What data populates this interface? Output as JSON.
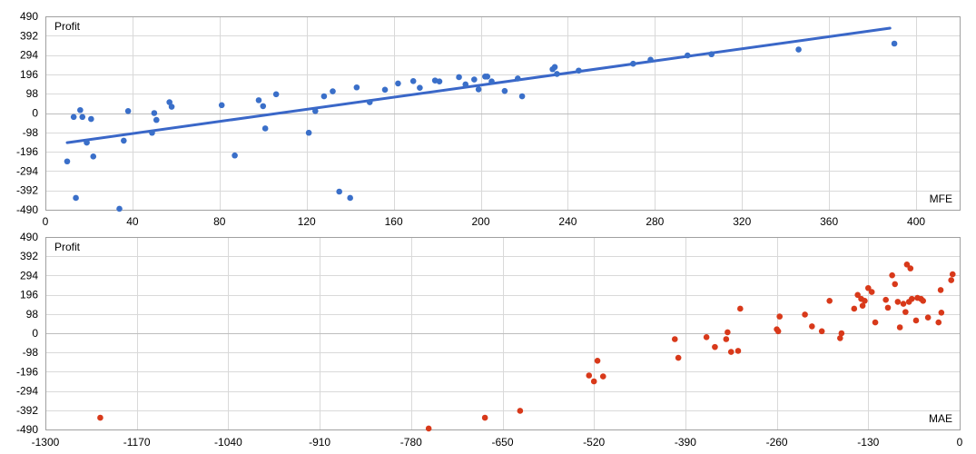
{
  "chart_data": [
    {
      "type": "scatter",
      "title": "",
      "ylabel": "Profit",
      "xlabel": "MFE",
      "xlim": [
        0,
        420
      ],
      "ylim": [
        -490,
        490
      ],
      "x_ticks": [
        0,
        40,
        80,
        120,
        160,
        200,
        240,
        280,
        320,
        360,
        400
      ],
      "y_ticks": [
        -490,
        -392,
        -294,
        -196,
        -98,
        0,
        98,
        196,
        294,
        392,
        490
      ],
      "grid": true,
      "point_color": "#3a6fc9",
      "trend_color": "#3a67c8",
      "trendline": {
        "x": [
          10,
          388
        ],
        "y": [
          -150,
          430
        ]
      },
      "points": [
        [
          10,
          -245
        ],
        [
          13,
          -20
        ],
        [
          14,
          -430
        ],
        [
          16,
          15
        ],
        [
          17,
          -20
        ],
        [
          19,
          -150
        ],
        [
          21,
          -30
        ],
        [
          22,
          -220
        ],
        [
          34,
          -485
        ],
        [
          36,
          -140
        ],
        [
          38,
          10
        ],
        [
          49,
          -100
        ],
        [
          50,
          0
        ],
        [
          51,
          -35
        ],
        [
          57,
          55
        ],
        [
          58,
          32
        ],
        [
          81,
          40
        ],
        [
          87,
          -215
        ],
        [
          98,
          65
        ],
        [
          100,
          35
        ],
        [
          101,
          -78
        ],
        [
          106,
          95
        ],
        [
          121,
          -100
        ],
        [
          124,
          10
        ],
        [
          128,
          85
        ],
        [
          132,
          110
        ],
        [
          135,
          -398
        ],
        [
          140,
          -430
        ],
        [
          143,
          130
        ],
        [
          149,
          55
        ],
        [
          156,
          118
        ],
        [
          162,
          150
        ],
        [
          169,
          162
        ],
        [
          172,
          128
        ],
        [
          179,
          165
        ],
        [
          181,
          160
        ],
        [
          190,
          182
        ],
        [
          193,
          145
        ],
        [
          197,
          170
        ],
        [
          199,
          120
        ],
        [
          202,
          185
        ],
        [
          203,
          185
        ],
        [
          205,
          160
        ],
        [
          211,
          112
        ],
        [
          217,
          175
        ],
        [
          219,
          85
        ],
        [
          233,
          222
        ],
        [
          234,
          233
        ],
        [
          235,
          198
        ],
        [
          245,
          215
        ],
        [
          270,
          250
        ],
        [
          278,
          270
        ],
        [
          295,
          292
        ],
        [
          306,
          298
        ],
        [
          346,
          322
        ],
        [
          390,
          352
        ]
      ]
    },
    {
      "type": "scatter",
      "title": "",
      "ylabel": "Profit",
      "xlabel": "MAE",
      "xlim": [
        -1300,
        0
      ],
      "ylim": [
        -490,
        490
      ],
      "x_ticks": [
        -1300,
        -1170,
        -1040,
        -910,
        -780,
        -650,
        -520,
        -390,
        -260,
        -130,
        0
      ],
      "y_ticks": [
        -490,
        -392,
        -294,
        -196,
        -98,
        0,
        98,
        196,
        294,
        392,
        490
      ],
      "grid": true,
      "point_color": "#d8391a",
      "points": [
        [
          -1222,
          -430
        ],
        [
          -755,
          -485
        ],
        [
          -675,
          -430
        ],
        [
          -625,
          -395
        ],
        [
          -527,
          -215
        ],
        [
          -520,
          -245
        ],
        [
          -515,
          -140
        ],
        [
          -507,
          -220
        ],
        [
          -405,
          -30
        ],
        [
          -400,
          -125
        ],
        [
          -360,
          -20
        ],
        [
          -348,
          -70
        ],
        [
          -332,
          -30
        ],
        [
          -330,
          5
        ],
        [
          -325,
          -95
        ],
        [
          -315,
          -90
        ],
        [
          -312,
          125
        ],
        [
          -260,
          20
        ],
        [
          -258,
          10
        ],
        [
          -256,
          85
        ],
        [
          -220,
          95
        ],
        [
          -210,
          35
        ],
        [
          -196,
          10
        ],
        [
          -185,
          165
        ],
        [
          -170,
          -25
        ],
        [
          -168,
          0
        ],
        [
          -150,
          125
        ],
        [
          -145,
          195
        ],
        [
          -140,
          175
        ],
        [
          -138,
          140
        ],
        [
          -135,
          165
        ],
        [
          -130,
          230
        ],
        [
          -125,
          210
        ],
        [
          -120,
          55
        ],
        [
          -105,
          170
        ],
        [
          -102,
          130
        ],
        [
          -96,
          295
        ],
        [
          -92,
          250
        ],
        [
          -88,
          160
        ],
        [
          -85,
          30
        ],
        [
          -80,
          150
        ],
        [
          -77,
          108
        ],
        [
          -75,
          350
        ],
        [
          -72,
          160
        ],
        [
          -70,
          330
        ],
        [
          -68,
          175
        ],
        [
          -62,
          65
        ],
        [
          -60,
          180
        ],
        [
          -55,
          175
        ],
        [
          -52,
          165
        ],
        [
          -45,
          80
        ],
        [
          -30,
          55
        ],
        [
          -27,
          220
        ],
        [
          -26,
          105
        ],
        [
          -12,
          270
        ],
        [
          -10,
          300
        ]
      ]
    }
  ]
}
